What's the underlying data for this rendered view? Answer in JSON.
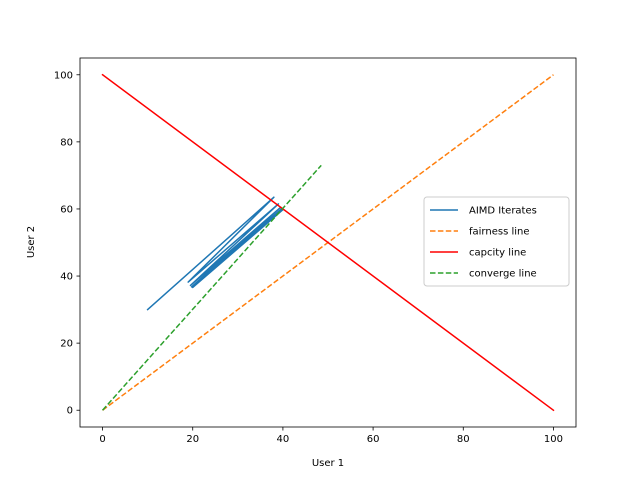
{
  "chart_data": {
    "type": "line",
    "title": "",
    "xlabel": "User 1",
    "ylabel": "User 2",
    "xlim": [
      -5,
      105
    ],
    "ylim": [
      -5,
      105
    ],
    "xticks": [
      0,
      20,
      40,
      60,
      80,
      100
    ],
    "yticks": [
      0,
      20,
      40,
      60,
      80,
      100
    ],
    "xtick_labels": [
      "0",
      "20",
      "40",
      "60",
      "80",
      "100"
    ],
    "ytick_labels": [
      "0",
      "20",
      "40",
      "60",
      "80",
      "100"
    ],
    "grid": false,
    "legend_position": "center-right",
    "series": [
      {
        "name": "AIMD Iterates",
        "color": "#1f77b4",
        "style": "solid",
        "x": [
          10,
          38,
          19,
          39,
          19.5,
          39.5,
          19.75,
          39.75,
          19.9,
          39.9,
          20,
          40
        ],
        "y": [
          30,
          63.5,
          38.2,
          61.5,
          37.2,
          60.5,
          36.8,
          60.1,
          36.7,
          59.9,
          36.6,
          59.8
        ]
      },
      {
        "name": "fairness line",
        "color": "#ff7f0e",
        "style": "dashed",
        "x": [
          0,
          100
        ],
        "y": [
          0,
          100
        ]
      },
      {
        "name": "capcity line",
        "color": "#ff0000",
        "style": "solid",
        "x": [
          0,
          100
        ],
        "y": [
          100,
          0
        ]
      },
      {
        "name": "converge line",
        "color": "#2ca02c",
        "style": "dashed",
        "x": [
          0,
          48.5
        ],
        "y": [
          0,
          73
        ]
      }
    ]
  }
}
